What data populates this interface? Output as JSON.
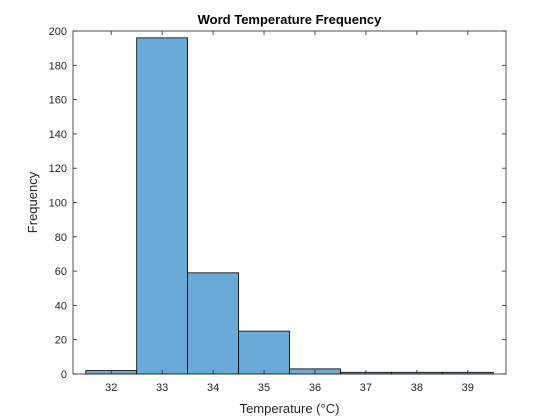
{
  "chart_data": {
    "type": "bar",
    "title": "Word Temperature Frequency",
    "xlabel": "Temperature (°C)",
    "ylabel": "Frequency",
    "xlim": [
      31.25,
      39.75
    ],
    "ylim": [
      0,
      200
    ],
    "xticks": [
      32,
      33,
      34,
      35,
      36,
      37,
      38,
      39
    ],
    "yticks": [
      0,
      20,
      40,
      60,
      80,
      100,
      120,
      140,
      160,
      180,
      200
    ],
    "bin_edges": [
      31.5,
      32.5,
      33.5,
      34.5,
      35.5,
      36.5,
      37.5,
      38.5,
      39.5
    ],
    "values": [
      2,
      196,
      59,
      25,
      3,
      1,
      1,
      1
    ],
    "bar_color": "#6aaad7",
    "edge_color": "#000000",
    "grid": false,
    "box": true
  }
}
